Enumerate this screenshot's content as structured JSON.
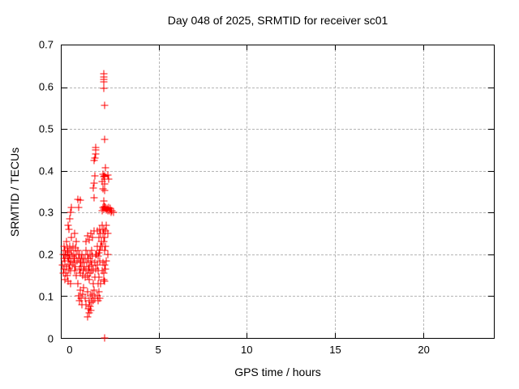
{
  "chart_data": {
    "type": "scatter",
    "title": "Day 048 of 2025, SRMTID for receiver sc01",
    "xlabel": "GPS time / hours",
    "ylabel": "SRMTID / TECUs",
    "xlim": [
      -0.5,
      24
    ],
    "ylim": [
      0,
      0.7
    ],
    "legend": "none",
    "grid": "dashed gray on labeled ticks",
    "marker": {
      "shape": "plus",
      "color": "#ff0000",
      "size": 9
    },
    "colors": {
      "background": "#ffffff",
      "border": "#000000",
      "grid": "#b5b5b5",
      "text": "#000000"
    },
    "xticks": [
      {
        "value": 0,
        "label": "0",
        "grid": false,
        "mark": false
      },
      {
        "value": 5,
        "label": "5",
        "grid": true,
        "mark": true
      },
      {
        "value": 10,
        "label": "10",
        "grid": true,
        "mark": true
      },
      {
        "value": 15,
        "label": "15",
        "grid": true,
        "mark": true
      },
      {
        "value": 20,
        "label": "20",
        "grid": true,
        "mark": true
      }
    ],
    "yticks": [
      {
        "value": 0,
        "label": "0",
        "grid": false,
        "mark": false
      },
      {
        "value": 0.1,
        "label": "0.1",
        "grid": true,
        "mark": true
      },
      {
        "value": 0.2,
        "label": "0.2",
        "grid": true,
        "mark": true
      },
      {
        "value": 0.3,
        "label": "0.3",
        "grid": true,
        "mark": true
      },
      {
        "value": 0.4,
        "label": "0.4",
        "grid": true,
        "mark": true
      },
      {
        "value": 0.5,
        "label": "0.5",
        "grid": true,
        "mark": true
      },
      {
        "value": 0.6,
        "label": "0.6",
        "grid": true,
        "mark": true
      },
      {
        "value": 0.7,
        "label": "0.7",
        "grid": false,
        "mark": false
      }
    ],
    "points": [
      [
        -0.44,
        0.175
      ],
      [
        -0.42,
        0.2
      ],
      [
        -0.4,
        0.155
      ],
      [
        -0.38,
        0.19
      ],
      [
        -0.36,
        0.22
      ],
      [
        -0.34,
        0.165
      ],
      [
        -0.32,
        0.185
      ],
      [
        -0.3,
        0.21
      ],
      [
        -0.28,
        0.155
      ],
      [
        -0.26,
        0.2
      ],
      [
        -0.24,
        0.23
      ],
      [
        -0.22,
        0.17
      ],
      [
        -0.2,
        0.195
      ],
      [
        -0.18,
        0.215
      ],
      [
        -0.16,
        0.15
      ],
      [
        -0.14,
        0.185
      ],
      [
        -0.12,
        0.205
      ],
      [
        -0.1,
        0.165
      ],
      [
        -0.08,
        0.19
      ],
      [
        -0.06,
        0.22
      ],
      [
        -0.04,
        0.175
      ],
      [
        -0.02,
        0.2
      ],
      [
        0.0,
        0.16
      ],
      [
        0.02,
        0.185
      ],
      [
        0.04,
        0.312
      ],
      [
        0.06,
        0.21
      ],
      [
        0.08,
        0.175
      ],
      [
        0.1,
        0.195
      ],
      [
        -0.1,
        0.26
      ],
      [
        -0.05,
        0.285
      ],
      [
        0.0,
        0.3
      ],
      [
        -0.15,
        0.27
      ],
      [
        0.05,
        0.24
      ],
      [
        -0.3,
        0.14
      ],
      [
        -0.15,
        0.135
      ],
      [
        0.0,
        0.13
      ],
      [
        0.15,
        0.22
      ],
      [
        0.18,
        0.18
      ],
      [
        0.2,
        0.2
      ],
      [
        0.22,
        0.16
      ],
      [
        0.25,
        0.19
      ],
      [
        0.28,
        0.215
      ],
      [
        0.3,
        0.17
      ],
      [
        0.32,
        0.2
      ],
      [
        0.35,
        0.15
      ],
      [
        0.38,
        0.185
      ],
      [
        0.4,
        0.21
      ],
      [
        0.42,
        0.331
      ],
      [
        0.45,
        0.312
      ],
      [
        0.48,
        0.19
      ],
      [
        0.5,
        0.165
      ],
      [
        0.52,
        0.2
      ],
      [
        0.54,
        0.329
      ],
      [
        0.55,
        0.18
      ],
      [
        0.58,
        0.155
      ],
      [
        0.6,
        0.19
      ],
      [
        0.62,
        0.17
      ],
      [
        0.65,
        0.2
      ],
      [
        0.68,
        0.15
      ],
      [
        0.7,
        0.18
      ],
      [
        0.72,
        0.16
      ],
      [
        0.75,
        0.19
      ],
      [
        0.45,
        0.1
      ],
      [
        0.5,
        0.09
      ],
      [
        0.55,
        0.115
      ],
      [
        0.6,
        0.095
      ],
      [
        0.65,
        0.08
      ],
      [
        0.7,
        0.105
      ],
      [
        0.4,
        0.13
      ],
      [
        0.75,
        0.12
      ],
      [
        0.35,
        0.23
      ],
      [
        0.25,
        0.25
      ],
      [
        0.8,
        0.17
      ],
      [
        0.82,
        0.145
      ],
      [
        0.85,
        0.19
      ],
      [
        0.88,
        0.16
      ],
      [
        0.9,
        0.21
      ],
      [
        0.92,
        0.18
      ],
      [
        0.95,
        0.15
      ],
      [
        0.97,
        0.051
      ],
      [
        0.98,
        0.2
      ],
      [
        1.0,
        0.165
      ],
      [
        1.02,
        0.19
      ],
      [
        1.05,
        0.14
      ],
      [
        1.08,
        0.17
      ],
      [
        1.1,
        0.2
      ],
      [
        1.12,
        0.155
      ],
      [
        1.15,
        0.185
      ],
      [
        1.18,
        0.16
      ],
      [
        1.2,
        0.21
      ],
      [
        1.22,
        0.175
      ],
      [
        1.25,
        0.195
      ],
      [
        1.28,
        0.165
      ],
      [
        1.3,
        0.359
      ],
      [
        1.33,
        0.425
      ],
      [
        1.36,
        0.371
      ],
      [
        1.38,
        0.387
      ],
      [
        1.36,
        0.335
      ],
      [
        1.4,
        0.18
      ],
      [
        1.42,
        0.2
      ],
      [
        1.45,
        0.165
      ],
      [
        0.85,
        0.095
      ],
      [
        0.9,
        0.08
      ],
      [
        0.95,
        0.11
      ],
      [
        1.0,
        0.07
      ],
      [
        1.05,
        0.09
      ],
      [
        1.1,
        0.075
      ],
      [
        1.15,
        0.1
      ],
      [
        1.2,
        0.085
      ],
      [
        1.25,
        0.105
      ],
      [
        1.3,
        0.09
      ],
      [
        1.35,
        0.115
      ],
      [
        1.4,
        0.095
      ],
      [
        1.05,
        0.06
      ],
      [
        1.15,
        0.065
      ],
      [
        0.88,
        0.23
      ],
      [
        0.95,
        0.245
      ],
      [
        1.05,
        0.235
      ],
      [
        1.15,
        0.25
      ],
      [
        1.25,
        0.24
      ],
      [
        1.35,
        0.255
      ],
      [
        1.3,
        0.13
      ],
      [
        1.38,
        0.145
      ],
      [
        1.42,
        0.45
      ],
      [
        1.45,
        0.455
      ],
      [
        1.44,
        0.44
      ],
      [
        1.4,
        0.43
      ],
      [
        1.48,
        0.2
      ],
      [
        1.5,
        0.175
      ],
      [
        1.52,
        0.22
      ],
      [
        1.55,
        0.195
      ],
      [
        1.58,
        0.16
      ],
      [
        1.6,
        0.203
      ],
      [
        1.62,
        0.24
      ],
      [
        1.65,
        0.21
      ],
      [
        1.68,
        0.185
      ],
      [
        1.7,
        0.22
      ],
      [
        1.72,
        0.25
      ],
      [
        1.75,
        0.23
      ],
      [
        1.5,
        0.1
      ],
      [
        1.55,
        0.09
      ],
      [
        1.6,
        0.11
      ],
      [
        1.65,
        0.095
      ],
      [
        1.7,
        0.13
      ],
      [
        1.55,
        0.13
      ],
      [
        1.6,
        0.145
      ],
      [
        1.5,
        0.255
      ],
      [
        1.68,
        0.26
      ],
      [
        1.87,
        0.633
      ],
      [
        1.9,
        0.625
      ],
      [
        1.88,
        0.618
      ],
      [
        1.91,
        0.612
      ],
      [
        1.9,
        0.598
      ],
      [
        1.94,
        0.556
      ],
      [
        1.94,
        0.475
      ],
      [
        1.99,
        0.407
      ],
      [
        1.85,
        0.392
      ],
      [
        1.88,
        0.385
      ],
      [
        1.92,
        0.388
      ],
      [
        1.95,
        0.38
      ],
      [
        1.82,
        0.374
      ],
      [
        1.94,
        0.369
      ],
      [
        1.86,
        0.357
      ],
      [
        1.92,
        0.353
      ],
      [
        2.1,
        0.39
      ],
      [
        2.18,
        0.38
      ],
      [
        1.89,
        0.328
      ],
      [
        1.8,
        0.305
      ],
      [
        1.84,
        0.312
      ],
      [
        1.88,
        0.308
      ],
      [
        1.92,
        0.315
      ],
      [
        1.96,
        0.31
      ],
      [
        2.0,
        0.312
      ],
      [
        2.04,
        0.306
      ],
      [
        2.08,
        0.31
      ],
      [
        2.12,
        0.305
      ],
      [
        2.15,
        0.312
      ],
      [
        2.2,
        0.305
      ],
      [
        2.25,
        0.31
      ],
      [
        2.3,
        0.3
      ],
      [
        1.8,
        0.27
      ],
      [
        1.85,
        0.25
      ],
      [
        1.9,
        0.26
      ],
      [
        1.95,
        0.24
      ],
      [
        2.0,
        0.255
      ],
      [
        2.05,
        0.27
      ],
      [
        2.1,
        0.25
      ],
      [
        1.82,
        0.22
      ],
      [
        1.88,
        0.23
      ],
      [
        1.94,
        0.21
      ],
      [
        2.0,
        0.22
      ],
      [
        2.1,
        0.2
      ],
      [
        1.8,
        0.16
      ],
      [
        1.85,
        0.18
      ],
      [
        1.9,
        0.155
      ],
      [
        1.95,
        0.175
      ],
      [
        2.0,
        0.165
      ],
      [
        2.05,
        0.185
      ],
      [
        1.88,
        0.14
      ],
      [
        1.95,
        0.135
      ],
      [
        1.94,
        0.0
      ],
      [
        2.35,
        0.305
      ],
      [
        2.45,
        0.3
      ]
    ]
  }
}
